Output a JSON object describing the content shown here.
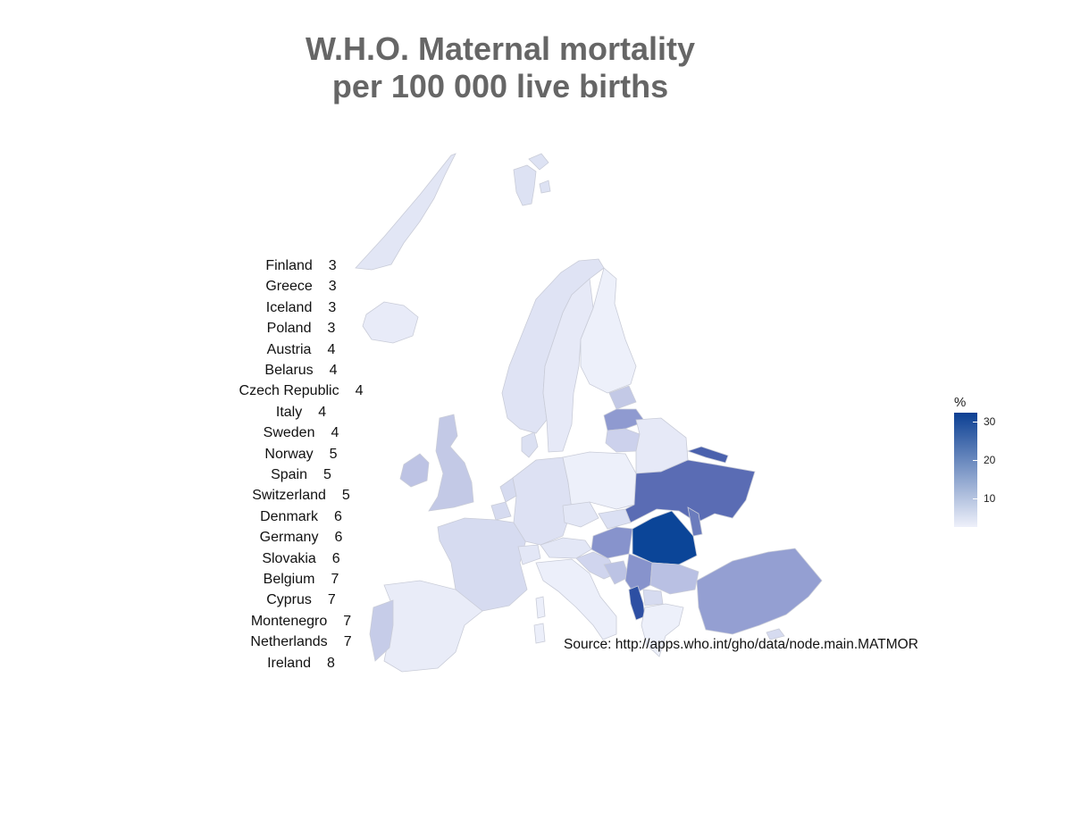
{
  "title": {
    "line1": "W.H.O. Maternal mortality",
    "line2": "per 100 000 live births"
  },
  "ranking": [
    {
      "country": "Finland",
      "value": "3"
    },
    {
      "country": "Greece",
      "value": "3"
    },
    {
      "country": "Iceland",
      "value": "3"
    },
    {
      "country": "Poland",
      "value": "3"
    },
    {
      "country": "Austria",
      "value": "4"
    },
    {
      "country": "Belarus",
      "value": "4"
    },
    {
      "country": "Czech Republic",
      "value": "4"
    },
    {
      "country": "Italy",
      "value": "4"
    },
    {
      "country": "Sweden",
      "value": "4"
    },
    {
      "country": "Norway",
      "value": "5"
    },
    {
      "country": "Spain",
      "value": "5"
    },
    {
      "country": "Switzerland",
      "value": "5"
    },
    {
      "country": "Denmark",
      "value": "6"
    },
    {
      "country": "Germany",
      "value": "6"
    },
    {
      "country": "Slovakia",
      "value": "6"
    },
    {
      "country": "Belgium",
      "value": "7"
    },
    {
      "country": "Cyprus",
      "value": "7"
    },
    {
      "country": "Montenegro",
      "value": "7"
    },
    {
      "country": "Netherlands",
      "value": "7"
    },
    {
      "country": "Ireland",
      "value": "8"
    }
  ],
  "legend": {
    "title": "%",
    "ticks": [
      "10",
      "20",
      "30"
    ],
    "color_low": "#eef0fa",
    "color_high": "#0b3f93"
  },
  "source": "Source: http://apps.who.int/gho/data/node.main.MATMOR"
}
